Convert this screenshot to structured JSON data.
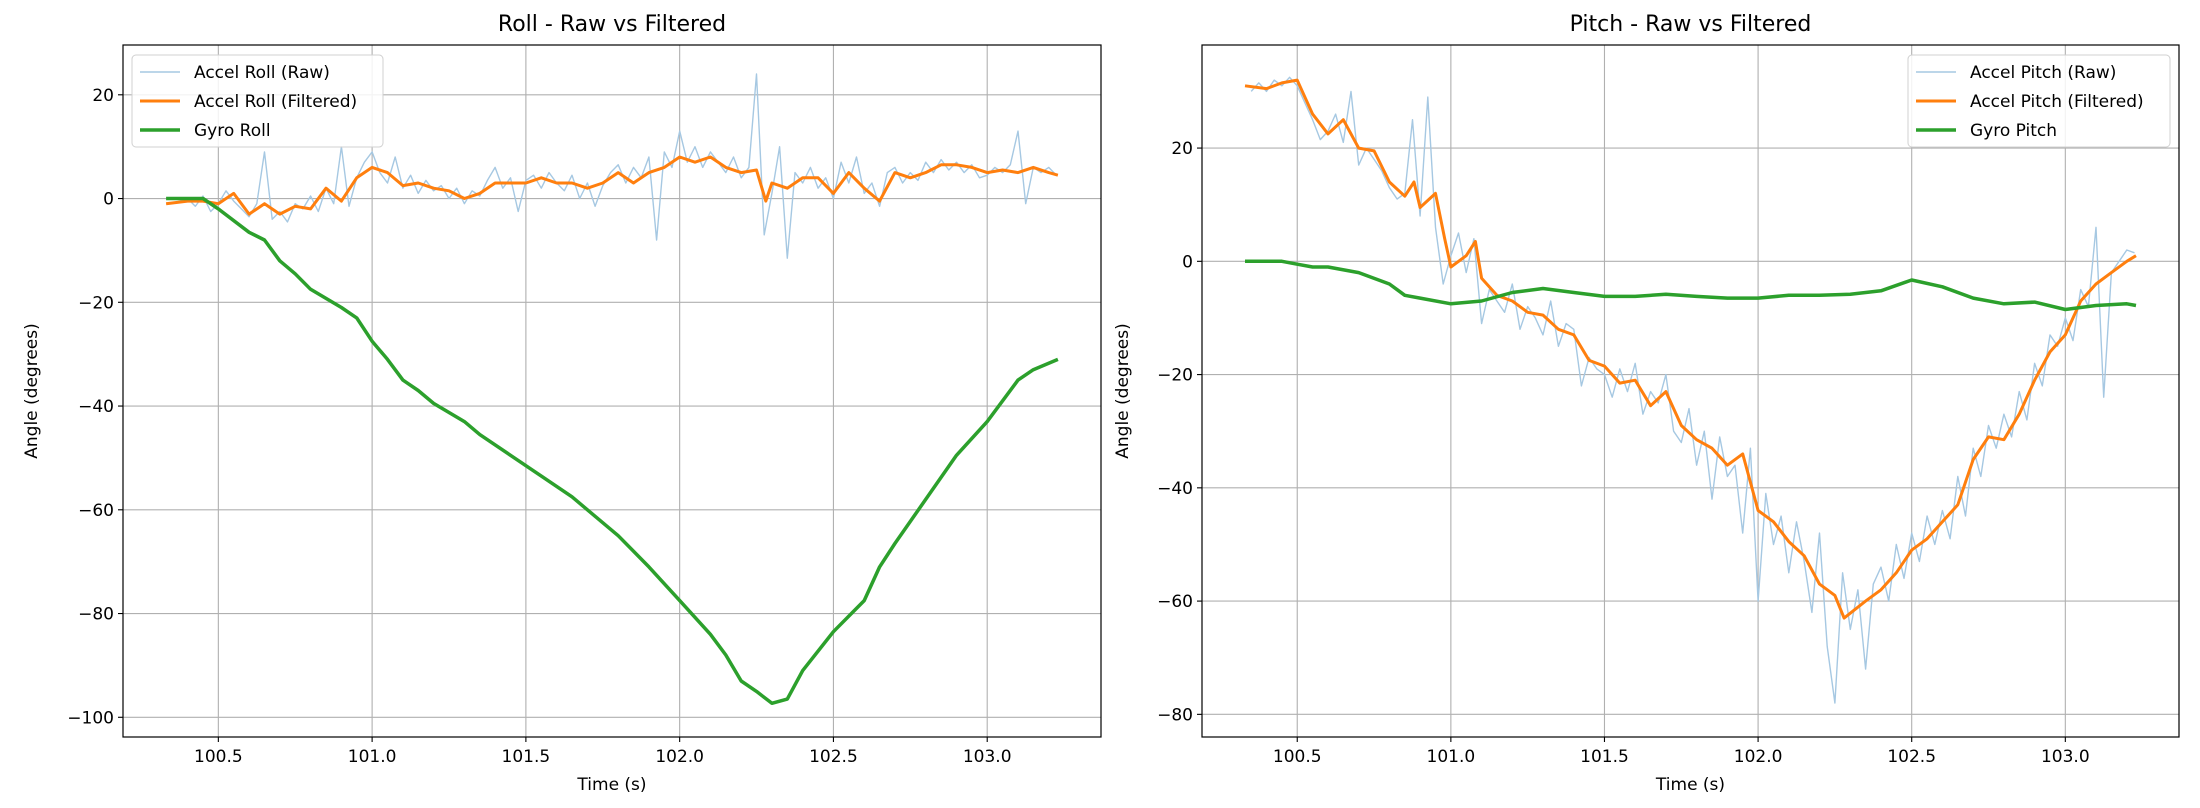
{
  "chart_data": [
    {
      "type": "line",
      "title": "Roll - Raw vs Filtered",
      "xlabel": "Time (s)",
      "ylabel": "Angle (degrees)",
      "xlim": [
        100.19,
        103.37
      ],
      "ylim": [
        -103.8,
        29.6
      ],
      "xticks": [
        100.5,
        101.0,
        101.5,
        102.0,
        102.5,
        103.0
      ],
      "xtick_labels": [
        "100.5",
        "101.0",
        "101.5",
        "102.0",
        "102.5",
        "103.0"
      ],
      "yticks": [
        -100,
        -80,
        -60,
        -40,
        -20,
        0,
        20
      ],
      "ytick_labels": [
        "−100",
        "−80",
        "−60",
        "−40",
        "−20",
        "0",
        "20"
      ],
      "grid": true,
      "legend_position": "upper-left",
      "series": [
        {
          "name": "Accel Roll (Raw)",
          "color": "#a6c8e2",
          "x": [
            100.35,
            100.375,
            100.4,
            100.425,
            100.45,
            100.475,
            100.5,
            100.525,
            100.55,
            100.575,
            100.6,
            100.625,
            100.65,
            100.675,
            100.7,
            100.725,
            100.75,
            100.775,
            100.8,
            100.825,
            100.85,
            100.875,
            100.9,
            100.925,
            100.95,
            100.975,
            101.0,
            101.025,
            101.05,
            101.075,
            101.1,
            101.125,
            101.15,
            101.175,
            101.2,
            101.225,
            101.25,
            101.275,
            101.3,
            101.325,
            101.35,
            101.375,
            101.4,
            101.425,
            101.45,
            101.475,
            101.5,
            101.525,
            101.55,
            101.575,
            101.6,
            101.625,
            101.65,
            101.675,
            101.7,
            101.725,
            101.75,
            101.775,
            101.8,
            101.825,
            101.85,
            101.875,
            101.9,
            101.925,
            101.95,
            101.975,
            102.0,
            102.025,
            102.05,
            102.075,
            102.1,
            102.125,
            102.15,
            102.175,
            102.2,
            102.225,
            102.25,
            102.275,
            102.3,
            102.325,
            102.35,
            102.375,
            102.4,
            102.425,
            102.45,
            102.475,
            102.5,
            102.525,
            102.55,
            102.575,
            102.6,
            102.625,
            102.65,
            102.675,
            102.7,
            102.725,
            102.75,
            102.775,
            102.8,
            102.825,
            102.85,
            102.875,
            102.9,
            102.925,
            102.95,
            102.975,
            103.0,
            103.025,
            103.05,
            103.075,
            103.1,
            103.125,
            103.15,
            103.175,
            103.2,
            103.225
          ],
          "y": [
            -1,
            -0.5,
            0,
            -1.5,
            0.5,
            -2.5,
            -1,
            1.5,
            -0.5,
            -2,
            -3.5,
            -1,
            9,
            -4,
            -2.5,
            -4.5,
            -1,
            -2,
            0.5,
            -2.5,
            2,
            -1,
            10,
            -1.5,
            4,
            7,
            9,
            5,
            3,
            8,
            2,
            4.5,
            1,
            3.5,
            1.5,
            2.5,
            0,
            2,
            -1,
            1.5,
            0.5,
            3.5,
            6,
            2,
            4,
            -2.5,
            3.5,
            4.5,
            2,
            5,
            3,
            1.5,
            4.5,
            0,
            3,
            -1.5,
            2.5,
            5,
            6.5,
            3,
            6,
            4,
            8,
            -8,
            9,
            6,
            13,
            7,
            10,
            6,
            9,
            7,
            5,
            8,
            4,
            6,
            24,
            -7,
            1,
            10,
            -11.5,
            5,
            3,
            6,
            2,
            4,
            0,
            7,
            3,
            8,
            1,
            3,
            -1.5,
            5,
            6,
            3,
            5,
            3.5,
            7,
            5,
            7.5,
            5.5,
            7,
            5,
            6.5,
            4,
            4.5,
            6,
            5,
            6.5,
            13,
            -1,
            6,
            5,
            6,
            4.5
          ]
        },
        {
          "name": "Accel Roll (Filtered)",
          "color": "#ff7f0e",
          "x": [
            100.33,
            100.4,
            100.45,
            100.5,
            100.55,
            100.6,
            100.65,
            100.7,
            100.75,
            100.8,
            100.85,
            100.9,
            100.95,
            101.0,
            101.05,
            101.1,
            101.15,
            101.2,
            101.25,
            101.3,
            101.35,
            101.4,
            101.45,
            101.5,
            101.55,
            101.6,
            101.65,
            101.7,
            101.75,
            101.8,
            101.85,
            101.9,
            101.95,
            102.0,
            102.05,
            102.1,
            102.15,
            102.2,
            102.25,
            102.28,
            102.3,
            102.35,
            102.4,
            102.45,
            102.5,
            102.55,
            102.6,
            102.65,
            102.7,
            102.75,
            102.8,
            102.85,
            102.9,
            102.95,
            103.0,
            103.05,
            103.1,
            103.15,
            103.2,
            103.23
          ],
          "y": [
            -1,
            -0.5,
            -0.5,
            -1,
            1,
            -3,
            -1,
            -3,
            -1.5,
            -2,
            2,
            -0.5,
            4,
            6,
            5,
            2.5,
            3,
            2,
            1.5,
            0,
            1,
            3,
            3,
            3,
            4,
            3,
            3,
            2,
            3,
            5,
            3,
            5,
            6,
            8,
            7,
            8,
            6,
            5,
            5.5,
            -0.5,
            3,
            2,
            4,
            4,
            1,
            5,
            2,
            -0.5,
            5,
            4,
            5,
            6.5,
            6.5,
            6,
            5,
            5.5,
            5,
            6,
            5,
            4.5
          ]
        },
        {
          "name": "Gyro Roll",
          "color": "#2ca02c",
          "x": [
            100.33,
            100.45,
            100.5,
            100.6,
            100.65,
            100.7,
            100.75,
            100.8,
            100.9,
            100.95,
            101.0,
            101.05,
            101.1,
            101.15,
            101.2,
            101.3,
            101.35,
            101.45,
            101.55,
            101.65,
            101.7,
            101.8,
            101.9,
            102.0,
            102.1,
            102.15,
            102.2,
            102.25,
            102.3,
            102.35,
            102.4,
            102.5,
            102.6,
            102.65,
            102.7,
            102.8,
            102.9,
            103.0,
            103.1,
            103.15,
            103.23
          ],
          "y": [
            0,
            0,
            -2,
            -6.5,
            -8,
            -12,
            -14.5,
            -17.5,
            -21,
            -23,
            -27.5,
            -31,
            -35,
            -37,
            -39.5,
            -43,
            -45.5,
            -49.5,
            -53.5,
            -57.5,
            -60,
            -65,
            -71,
            -77.5,
            -84,
            -88,
            -93,
            -95,
            -97.3,
            -96.5,
            -91,
            -83.5,
            -77.5,
            -71,
            -66.5,
            -58,
            -49.5,
            -43,
            -35,
            -33,
            -31
          ]
        }
      ]
    },
    {
      "type": "line",
      "title": "Pitch - Raw vs Filtered",
      "xlabel": "Time (s)",
      "ylabel": "Angle (degrees)",
      "xlim": [
        100.19,
        103.37
      ],
      "ylim": [
        -84,
        38.2
      ],
      "xticks": [
        100.5,
        101.0,
        101.5,
        102.0,
        102.5,
        103.0
      ],
      "xtick_labels": [
        "100.5",
        "101.0",
        "101.5",
        "102.0",
        "102.5",
        "103.0"
      ],
      "yticks": [
        -80,
        -60,
        -40,
        -20,
        0,
        20
      ],
      "ytick_labels": [
        "−80",
        "−60",
        "−40",
        "−20",
        "0",
        "20"
      ],
      "grid": true,
      "legend_position": "upper-right",
      "series": [
        {
          "name": "Accel Pitch (Raw)",
          "color": "#a6c8e2",
          "x": [
            100.35,
            100.375,
            100.4,
            100.425,
            100.45,
            100.475,
            100.5,
            100.525,
            100.55,
            100.575,
            100.6,
            100.625,
            100.65,
            100.675,
            100.7,
            100.725,
            100.75,
            100.775,
            100.8,
            100.825,
            100.85,
            100.875,
            100.9,
            100.925,
            100.95,
            100.975,
            101.0,
            101.025,
            101.05,
            101.075,
            101.1,
            101.125,
            101.15,
            101.175,
            101.2,
            101.225,
            101.25,
            101.275,
            101.3,
            101.325,
            101.35,
            101.375,
            101.4,
            101.425,
            101.45,
            101.475,
            101.5,
            101.525,
            101.55,
            101.575,
            101.6,
            101.625,
            101.65,
            101.675,
            101.7,
            101.725,
            101.75,
            101.775,
            101.8,
            101.825,
            101.85,
            101.875,
            101.9,
            101.925,
            101.95,
            101.975,
            102.0,
            102.025,
            102.05,
            102.075,
            102.1,
            102.125,
            102.15,
            102.175,
            102.2,
            102.225,
            102.25,
            102.275,
            102.3,
            102.325,
            102.35,
            102.375,
            102.4,
            102.425,
            102.45,
            102.475,
            102.5,
            102.525,
            102.55,
            102.575,
            102.6,
            102.625,
            102.65,
            102.675,
            102.7,
            102.725,
            102.75,
            102.775,
            102.8,
            102.825,
            102.85,
            102.875,
            102.9,
            102.925,
            102.95,
            102.975,
            103.0,
            103.025,
            103.05,
            103.075,
            103.1,
            103.125,
            103.15,
            103.175,
            103.2,
            103.225
          ],
          "y": [
            30,
            31.5,
            30,
            32,
            31,
            32.5,
            31,
            28,
            25,
            21.5,
            23,
            26,
            21,
            30,
            17,
            20,
            18,
            16,
            13,
            11,
            12,
            25,
            8,
            29,
            6,
            -4,
            1,
            5,
            -2,
            4,
            -11,
            -5,
            -7,
            -9,
            -4,
            -12,
            -8,
            -10,
            -13,
            -7,
            -15,
            -11,
            -12,
            -22,
            -17,
            -19,
            -20,
            -24,
            -19,
            -23,
            -18,
            -27,
            -23,
            -25,
            -20,
            -30,
            -32,
            -26,
            -36,
            -30,
            -42,
            -31,
            -38,
            -36,
            -48,
            -33,
            -60,
            -41,
            -50,
            -45,
            -55,
            -46,
            -53,
            -62,
            -48,
            -68,
            -78,
            -55,
            -65,
            -58,
            -72,
            -57,
            -54,
            -60,
            -50,
            -56,
            -48,
            -53,
            -45,
            -50,
            -44,
            -49,
            -38,
            -45,
            -33,
            -38,
            -29,
            -33,
            -27,
            -31,
            -23,
            -28,
            -18,
            -22,
            -13,
            -15,
            -10,
            -14,
            -5,
            -8,
            6,
            -24,
            -2,
            0,
            2,
            1.5
          ]
        },
        {
          "name": "Accel Pitch (Filtered)",
          "color": "#ff7f0e",
          "x": [
            100.33,
            100.4,
            100.45,
            100.5,
            100.55,
            100.6,
            100.65,
            100.7,
            100.75,
            100.8,
            100.85,
            100.88,
            100.9,
            100.95,
            100.98,
            101.0,
            101.05,
            101.08,
            101.1,
            101.15,
            101.2,
            101.25,
            101.3,
            101.35,
            101.4,
            101.45,
            101.5,
            101.55,
            101.6,
            101.65,
            101.7,
            101.75,
            101.8,
            101.85,
            101.9,
            101.95,
            102.0,
            102.05,
            102.1,
            102.15,
            102.2,
            102.25,
            102.28,
            102.35,
            102.4,
            102.45,
            102.5,
            102.55,
            102.6,
            102.65,
            102.7,
            102.75,
            102.8,
            102.85,
            102.9,
            102.95,
            103.0,
            103.05,
            103.1,
            103.15,
            103.2,
            103.23
          ],
          "y": [
            31,
            30.5,
            31.5,
            32,
            26,
            22.5,
            25,
            20,
            19.5,
            14,
            11.5,
            14,
            9.5,
            12,
            4,
            -1,
            1,
            3.5,
            -3,
            -6,
            -7,
            -9,
            -9.5,
            -12,
            -13,
            -17.5,
            -18.5,
            -21.5,
            -21,
            -25.5,
            -23,
            -29,
            -31.5,
            -33,
            -36,
            -34,
            -44,
            -46,
            -49.5,
            -52,
            -57,
            -59,
            -63,
            -60,
            -58,
            -55,
            -51,
            -49,
            -46,
            -43,
            -35,
            -31,
            -31.5,
            -27,
            -21,
            -16,
            -13,
            -7,
            -4,
            -2,
            0,
            1
          ]
        },
        {
          "name": "Gyro Pitch",
          "color": "#2ca02c",
          "x": [
            100.33,
            100.45,
            100.5,
            100.55,
            100.6,
            100.7,
            100.8,
            100.85,
            100.9,
            101.0,
            101.1,
            101.2,
            101.3,
            101.4,
            101.5,
            101.6,
            101.7,
            101.8,
            101.9,
            102.0,
            102.1,
            102.2,
            102.3,
            102.4,
            102.5,
            102.6,
            102.7,
            102.8,
            102.9,
            103.0,
            103.1,
            103.2,
            103.23
          ],
          "y": [
            0,
            0,
            -0.5,
            -1,
            -1,
            -2,
            -4,
            -6,
            -6.5,
            -7.5,
            -7,
            -5.5,
            -4.8,
            -5.5,
            -6.2,
            -6.2,
            -5.8,
            -6.2,
            -6.5,
            -6.5,
            -6,
            -6,
            -5.8,
            -5.2,
            -3.3,
            -4.5,
            -6.5,
            -7.5,
            -7.2,
            -8.5,
            -7.8,
            -7.5,
            -7.8
          ]
        }
      ]
    }
  ]
}
